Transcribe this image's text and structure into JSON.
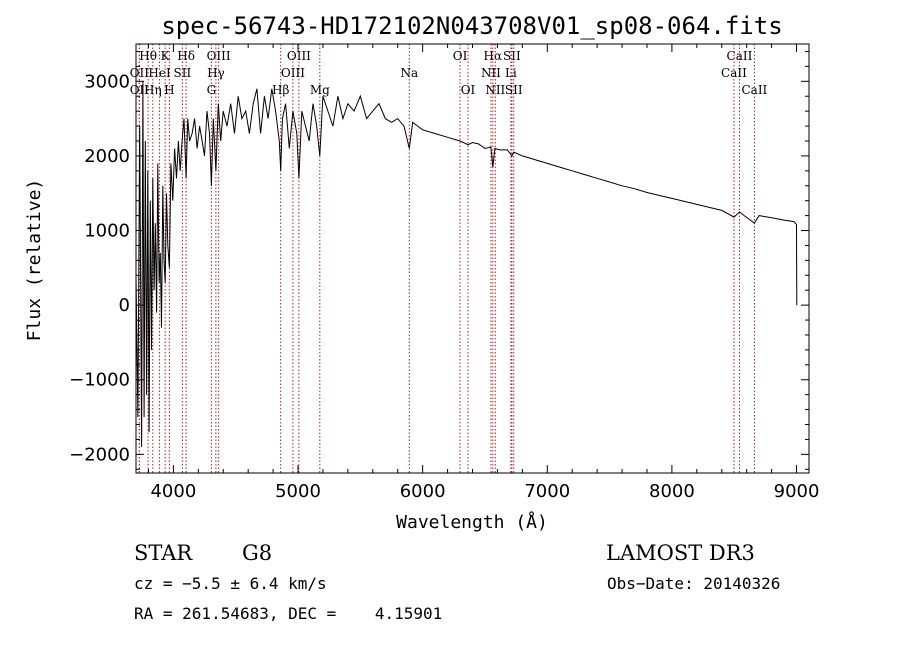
{
  "chart_data": {
    "type": "line",
    "title": "spec-56743-HD172102N043708V01_sp08-064.fits",
    "xlabel": "Wavelength (Å)",
    "ylabel": "Flux (relative)",
    "xlim": [
      3700,
      9100
    ],
    "ylim": [
      -2250,
      3500
    ],
    "xticks": [
      4000,
      5000,
      6000,
      7000,
      8000,
      9000
    ],
    "xtick_labels": [
      "4000",
      "5000",
      "6000",
      "7000",
      "8000",
      "9000"
    ],
    "yticks": [
      -2000,
      -1000,
      0,
      1000,
      2000,
      3000
    ],
    "ytick_labels": [
      "−2000",
      "−1000",
      "0",
      "1000",
      "2000",
      "3000"
    ],
    "lines": [
      {
        "label": "OII",
        "x": 3727,
        "row": 1
      },
      {
        "label": "Hθ",
        "x": 3797,
        "row": 0
      },
      {
        "label": "OII",
        "x": 3727,
        "row": 2
      },
      {
        "label": "Hη",
        "x": 3835,
        "row": 2
      },
      {
        "label": "HeI",
        "x": 3889,
        "row": 1
      },
      {
        "label": "K",
        "x": 3934,
        "row": 0
      },
      {
        "label": "H",
        "x": 3968,
        "row": 2
      },
      {
        "label": "SII",
        "x": 4072,
        "row": 1
      },
      {
        "label": "Hδ",
        "x": 4102,
        "row": 0
      },
      {
        "label": "OIII",
        "x": 4363,
        "row": 0
      },
      {
        "label": "Hγ",
        "x": 4341,
        "row": 1
      },
      {
        "label": "G",
        "x": 4305,
        "row": 2
      },
      {
        "label": "Hβ",
        "x": 4861,
        "row": 2
      },
      {
        "label": "OIII",
        "x": 4959,
        "row": 1
      },
      {
        "label": "OIII",
        "x": 5007,
        "row": 0
      },
      {
        "label": "Mg",
        "x": 5175,
        "row": 2
      },
      {
        "label": "Na",
        "x": 5893,
        "row": 1
      },
      {
        "label": "OI",
        "x": 6300,
        "row": 0
      },
      {
        "label": "OI",
        "x": 6364,
        "row": 2
      },
      {
        "label": "Hα",
        "x": 6563,
        "row": 0
      },
      {
        "label": "NII",
        "x": 6548,
        "row": 1
      },
      {
        "label": "NII",
        "x": 6583,
        "row": 2
      },
      {
        "label": "SII",
        "x": 6716,
        "row": 0
      },
      {
        "label": "Li",
        "x": 6708,
        "row": 1
      },
      {
        "label": "SII",
        "x": 6731,
        "row": 2
      },
      {
        "label": "CaII",
        "x": 8542,
        "row": 0
      },
      {
        "label": "CaII",
        "x": 8498,
        "row": 1
      },
      {
        "label": "CaII",
        "x": 8662,
        "row": 2
      }
    ],
    "series": [
      {
        "name": "flux",
        "x": [
          3700,
          3715,
          3730,
          3745,
          3755,
          3765,
          3775,
          3785,
          3795,
          3805,
          3815,
          3825,
          3835,
          3845,
          3855,
          3865,
          3875,
          3885,
          3895,
          3905,
          3915,
          3925,
          3934,
          3945,
          3955,
          3968,
          3980,
          3995,
          4010,
          4025,
          4040,
          4055,
          4070,
          4085,
          4102,
          4115,
          4130,
          4150,
          4170,
          4190,
          4210,
          4230,
          4250,
          4270,
          4290,
          4305,
          4320,
          4341,
          4360,
          4380,
          4400,
          4430,
          4460,
          4490,
          4520,
          4550,
          4580,
          4610,
          4640,
          4670,
          4700,
          4730,
          4760,
          4790,
          4820,
          4850,
          4861,
          4875,
          4900,
          4930,
          4959,
          4990,
          5007,
          5030,
          5060,
          5090,
          5120,
          5150,
          5175,
          5200,
          5240,
          5280,
          5320,
          5360,
          5400,
          5450,
          5500,
          5550,
          5600,
          5650,
          5700,
          5750,
          5800,
          5850,
          5893,
          5920,
          5960,
          6000,
          6100,
          6200,
          6300,
          6364,
          6400,
          6450,
          6500,
          6548,
          6563,
          6580,
          6620,
          6680,
          6716,
          6731,
          6760,
          6800,
          6900,
          7000,
          7100,
          7200,
          7300,
          7400,
          7500,
          7600,
          7700,
          7800,
          7900,
          8000,
          8100,
          8200,
          8300,
          8400,
          8498,
          8542,
          8580,
          8662,
          8700,
          8800,
          8900,
          8980,
          9000,
          9002
        ],
        "y": [
          400,
          -1500,
          2400,
          -1900,
          3000,
          -1500,
          2200,
          -1200,
          1800,
          -1700,
          1400,
          -600,
          1700,
          200,
          1100,
          -100,
          1900,
          300,
          700,
          -300,
          1600,
          600,
          300,
          1500,
          800,
          500,
          1900,
          1400,
          2100,
          1700,
          2200,
          1800,
          2200,
          2500,
          1700,
          2500,
          2200,
          2300,
          2500,
          2100,
          2400,
          2200,
          2000,
          2600,
          2300,
          1600,
          2500,
          1800,
          2700,
          2200,
          2600,
          2400,
          2700,
          2300,
          2800,
          2500,
          2600,
          2300,
          2700,
          2900,
          2300,
          2800,
          2500,
          2900,
          2600,
          2200,
          1800,
          2500,
          2700,
          2100,
          2600,
          2300,
          1700,
          2600,
          2400,
          2200,
          2700,
          2400,
          2000,
          2800,
          2600,
          2400,
          2800,
          2500,
          2700,
          2600,
          2800,
          2500,
          2600,
          2700,
          2500,
          2450,
          2500,
          2400,
          2100,
          2450,
          2400,
          2350,
          2300,
          2250,
          2200,
          2150,
          2180,
          2160,
          2100,
          2120,
          1850,
          2100,
          2080,
          2080,
          2000,
          2050,
          2030,
          2000,
          1950,
          1900,
          1850,
          1800,
          1750,
          1700,
          1650,
          1600,
          1560,
          1510,
          1470,
          1430,
          1390,
          1350,
          1310,
          1270,
          1180,
          1250,
          1200,
          1100,
          1200,
          1170,
          1140,
          1120,
          1080,
          0
        ]
      }
    ]
  },
  "info": {
    "object": "STAR",
    "subclass": "G8",
    "survey": "LAMOST DR3",
    "cz": "cz = −5.5 ± 6.4 km/s",
    "obs_date": "Obs−Date: 20140326",
    "coords": "RA = 261.54683, DEC =    4.15901"
  }
}
